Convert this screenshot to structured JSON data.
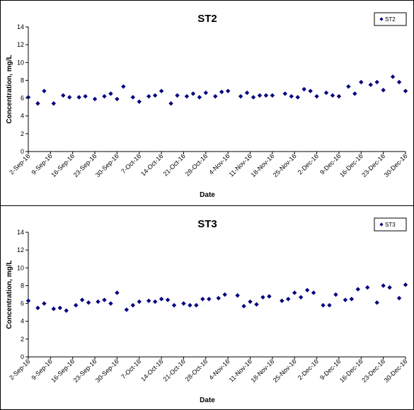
{
  "chart_data": [
    {
      "type": "scatter",
      "title": "ST2",
      "xlabel": "Date",
      "ylabel": "Concentration, mg/L",
      "xlim": [
        "2016-09-02",
        "2016-12-30"
      ],
      "ylim": [
        0,
        14
      ],
      "yticks": [
        0,
        2,
        4,
        6,
        8,
        10,
        12,
        14
      ],
      "xtick_labels": [
        "2-Sep-16",
        "9-Sep-16",
        "16-Sep-16",
        "23-Sep-16",
        "30-Sep-16",
        "7-Oct-16",
        "14-Oct-16",
        "21-Oct-16",
        "28-Oct-16",
        "4-Nov-16",
        "11-Nov-16",
        "18-Nov-16",
        "25-Nov-16",
        "2-Dec-16",
        "9-Dec-16",
        "16-Dec-16",
        "23-Dec-16",
        "30-Dec-16"
      ],
      "grid": false,
      "legend_position": "top-right",
      "marker_color": "#000080",
      "series": [
        {
          "name": "ST2",
          "x": [
            "2016-09-02",
            "2016-09-05",
            "2016-09-07",
            "2016-09-10",
            "2016-09-13",
            "2016-09-15",
            "2016-09-18",
            "2016-09-20",
            "2016-09-23",
            "2016-09-26",
            "2016-09-28",
            "2016-09-30",
            "2016-10-02",
            "2016-10-05",
            "2016-10-07",
            "2016-10-10",
            "2016-10-12",
            "2016-10-14",
            "2016-10-17",
            "2016-10-19",
            "2016-10-22",
            "2016-10-24",
            "2016-10-26",
            "2016-10-28",
            "2016-10-31",
            "2016-11-02",
            "2016-11-04",
            "2016-11-08",
            "2016-11-10",
            "2016-11-12",
            "2016-11-14",
            "2016-11-16",
            "2016-11-18",
            "2016-11-22",
            "2016-11-24",
            "2016-11-26",
            "2016-11-28",
            "2016-11-30",
            "2016-12-02",
            "2016-12-05",
            "2016-12-07",
            "2016-12-09",
            "2016-12-12",
            "2016-12-14",
            "2016-12-16",
            "2016-12-19",
            "2016-12-21",
            "2016-12-23",
            "2016-12-26",
            "2016-12-28",
            "2016-12-30"
          ],
          "y": [
            6.1,
            5.4,
            6.8,
            5.4,
            6.3,
            6.1,
            6.1,
            6.2,
            5.9,
            6.2,
            6.5,
            5.9,
            7.3,
            6.1,
            5.6,
            6.2,
            6.3,
            6.8,
            5.4,
            6.3,
            6.2,
            6.5,
            6.1,
            6.6,
            6.2,
            6.7,
            6.8,
            6.2,
            6.6,
            6.1,
            6.3,
            6.3,
            6.3,
            6.5,
            6.2,
            6.1,
            7.0,
            6.8,
            6.2,
            6.6,
            6.3,
            6.2,
            7.3,
            6.5,
            7.8,
            7.5,
            7.8,
            6.9,
            8.4,
            7.8,
            6.8
          ]
        }
      ]
    },
    {
      "type": "scatter",
      "title": "ST3",
      "xlabel": "Date",
      "ylabel": "Concentration, mg/L",
      "xlim": [
        "2016-09-02",
        "2016-12-30"
      ],
      "ylim": [
        0,
        14
      ],
      "yticks": [
        0,
        2,
        4,
        6,
        8,
        10,
        12,
        14
      ],
      "xtick_labels": [
        "2-Sep-16",
        "9-Sep-16",
        "16-Sep-16",
        "23-Sep-16",
        "30-Sep-16",
        "7-Oct-16",
        "14-Oct-16",
        "21-Oct-16",
        "28-Oct-16",
        "4-Nov-16",
        "11-Nov-16",
        "18-Nov-16",
        "25-Nov-16",
        "2-Dec-16",
        "9-Dec-16",
        "16-Dec-16",
        "23-Dec-16",
        "30-Dec-16"
      ],
      "grid": false,
      "legend_position": "top-right",
      "marker_color": "#000080",
      "series": [
        {
          "name": "ST3",
          "x": [
            "2016-09-02",
            "2016-09-05",
            "2016-09-07",
            "2016-09-10",
            "2016-09-12",
            "2016-09-14",
            "2016-09-17",
            "2016-09-19",
            "2016-09-21",
            "2016-09-24",
            "2016-09-26",
            "2016-09-28",
            "2016-09-30",
            "2016-10-03",
            "2016-10-05",
            "2016-10-07",
            "2016-10-10",
            "2016-10-12",
            "2016-10-14",
            "2016-10-16",
            "2016-10-18",
            "2016-10-21",
            "2016-10-23",
            "2016-10-25",
            "2016-10-27",
            "2016-10-29",
            "2016-11-01",
            "2016-11-03",
            "2016-11-07",
            "2016-11-09",
            "2016-11-11",
            "2016-11-13",
            "2016-11-15",
            "2016-11-17",
            "2016-11-21",
            "2016-11-23",
            "2016-11-25",
            "2016-11-27",
            "2016-11-29",
            "2016-12-01",
            "2016-12-04",
            "2016-12-06",
            "2016-12-08",
            "2016-12-11",
            "2016-12-13",
            "2016-12-15",
            "2016-12-18",
            "2016-12-21",
            "2016-12-23",
            "2016-12-25",
            "2016-12-28",
            "2016-12-30"
          ],
          "y": [
            6.3,
            5.5,
            6.0,
            5.4,
            5.5,
            5.2,
            5.8,
            6.4,
            6.1,
            6.2,
            6.4,
            6.0,
            7.2,
            5.3,
            5.8,
            6.2,
            6.3,
            6.2,
            6.5,
            6.4,
            5.8,
            6.0,
            5.8,
            5.8,
            6.5,
            6.5,
            6.6,
            7.0,
            6.9,
            5.7,
            6.2,
            5.9,
            6.7,
            6.8,
            6.3,
            6.5,
            7.2,
            6.7,
            7.5,
            7.2,
            5.8,
            5.8,
            7.0,
            6.4,
            6.5,
            7.6,
            7.8,
            6.1,
            8.0,
            7.8,
            6.6,
            8.1
          ]
        }
      ]
    }
  ]
}
